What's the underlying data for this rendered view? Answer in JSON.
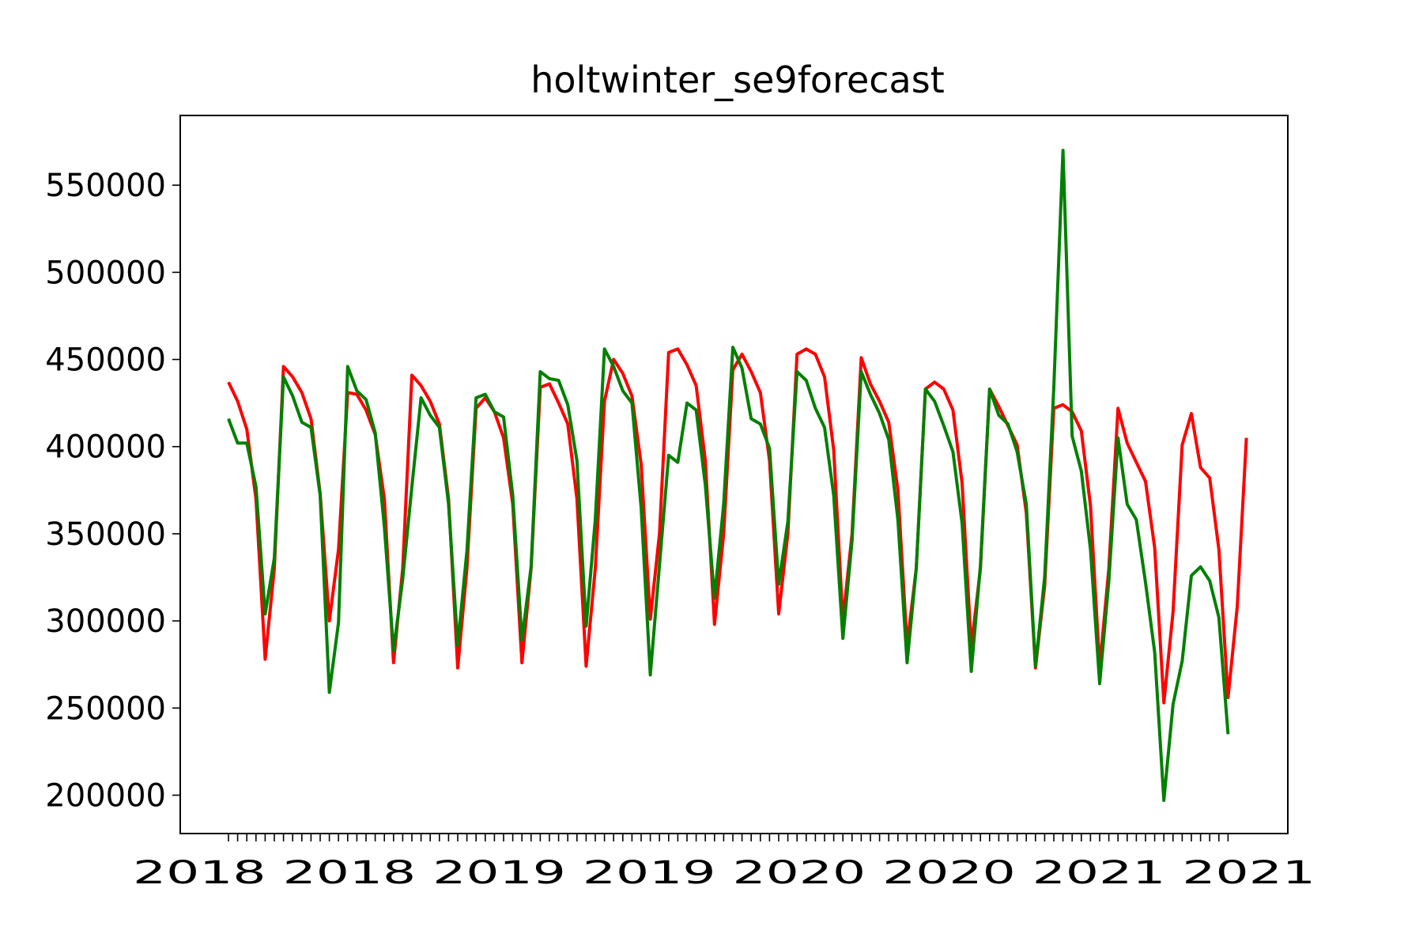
{
  "chart_data": {
    "type": "line",
    "title": "holtwinter_se9forecast",
    "xlabel": "",
    "ylabel": "",
    "ylim": [
      178000,
      590000
    ],
    "yticks": [
      200000,
      250000,
      300000,
      350000,
      400000,
      450000,
      500000,
      550000
    ],
    "x_tick_count": 110,
    "x_tick_labels_note_visible": "2018 2018 2019 2019 2020 2020 2021 2021",
    "grid": false,
    "legend": "none",
    "series": [
      {
        "color": "#ff0000",
        "values": [
          437000,
          426000,
          410000,
          370000,
          278000,
          330000,
          446000,
          440000,
          431000,
          416000,
          373000,
          300000,
          341000,
          431000,
          430000,
          421000,
          407000,
          370000,
          276000,
          330000,
          441000,
          435000,
          426000,
          413000,
          370000,
          273000,
          330000,
          422000,
          428000,
          420000,
          405000,
          367000,
          276000,
          330000,
          434000,
          436000,
          425000,
          413000,
          370000,
          274000,
          330000,
          426000,
          450000,
          442000,
          429000,
          390000,
          301000,
          350000,
          454000,
          456000,
          447000,
          435000,
          392000,
          298000,
          350000,
          444000,
          453000,
          443000,
          431000,
          392000,
          304000,
          350000,
          453000,
          456000,
          453000,
          440000,
          398000,
          300000,
          350000,
          451000,
          436000,
          426000,
          414000,
          375000,
          286000,
          330000,
          433000,
          437000,
          433000,
          421000,
          379000,
          285000,
          330000,
          433000,
          423000,
          412000,
          401000,
          362000,
          273000,
          320000,
          422000,
          424000,
          420000,
          409000,
          366000,
          273000,
          330000,
          422000,
          402000,
          391000,
          380000,
          342000,
          253000,
          305000,
          401000,
          419000,
          388000,
          382000,
          341000,
          256000,
          308000,
          405000
        ]
      },
      {
        "color": "#008000",
        "values": [
          416000,
          402000,
          402000,
          377000,
          304000,
          336000,
          440000,
          429000,
          414000,
          411000,
          372000,
          259000,
          299000,
          446000,
          432000,
          427000,
          408000,
          354000,
          283000,
          324000,
          377000,
          428000,
          418000,
          411000,
          367000,
          286000,
          340000,
          428000,
          430000,
          420000,
          417000,
          372000,
          289000,
          331000,
          443000,
          439000,
          438000,
          424000,
          392000,
          297000,
          358000,
          456000,
          446000,
          432000,
          425000,
          365000,
          269000,
          332000,
          395000,
          391000,
          425000,
          421000,
          378000,
          313000,
          367000,
          457000,
          445000,
          416000,
          413000,
          399000,
          321000,
          357000,
          443000,
          438000,
          422000,
          411000,
          372000,
          290000,
          346000,
          443000,
          430000,
          419000,
          404000,
          358000,
          276000,
          330000,
          433000,
          426000,
          412000,
          397000,
          356000,
          271000,
          332000,
          433000,
          418000,
          413000,
          397000,
          367000,
          274000,
          325000,
          434000,
          570000,
          406000,
          386000,
          341000,
          264000,
          323000,
          405000,
          367000,
          358000,
          322000,
          282000,
          197000,
          252000,
          277000,
          326000,
          331000,
          323000,
          302000,
          235000
        ]
      }
    ]
  }
}
